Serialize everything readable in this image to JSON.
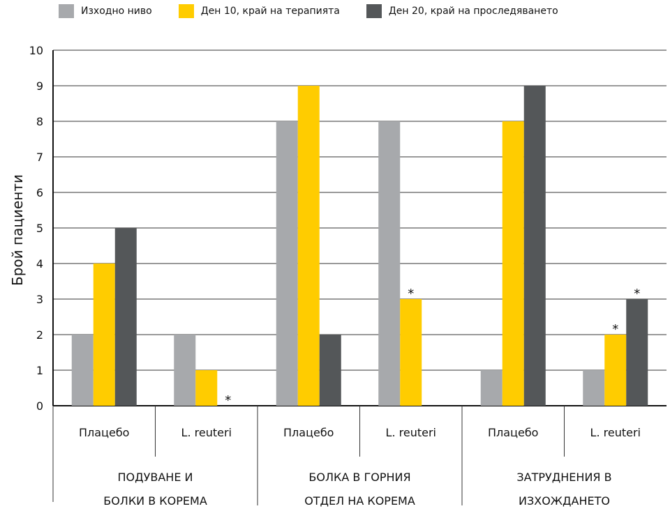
{
  "chart_data": {
    "type": "bar",
    "ylabel": "Брой пациенти",
    "ylim": [
      0,
      10
    ],
    "yticks": [
      0,
      1,
      2,
      3,
      4,
      5,
      6,
      7,
      8,
      9,
      10
    ],
    "grid": true,
    "legend_placement": "top",
    "series": [
      {
        "name": "Изходно ниво",
        "color": "#a7a9ac",
        "values": [
          2,
          2,
          8,
          8,
          1,
          1
        ]
      },
      {
        "name": "Ден 10, край на терапията",
        "color": "#ffcc00",
        "values": [
          4,
          1,
          9,
          3,
          8,
          2
        ]
      },
      {
        "name": "Ден 20, край на проследяването",
        "color": "#545759",
        "values": [
          5,
          0,
          2,
          0,
          9,
          3
        ]
      }
    ],
    "categories": [
      "Плацебо",
      "L. reuteri",
      "Плацебо",
      "L. reuteri",
      "Плацебо",
      "L. reuteri"
    ],
    "groups": [
      {
        "lines": [
          "ПОДУВАНЕ И",
          "БОЛКИ В КОРЕМА"
        ]
      },
      {
        "lines": [
          "БОЛКА В ГОРНИЯ",
          "ОТДЕЛ НА КОРЕМА"
        ]
      },
      {
        "lines": [
          "ЗАТРУДНЕНИЯ В",
          "ИЗХОЖДАНЕТО"
        ]
      }
    ],
    "annotations": [
      {
        "text": "*",
        "category_index": 1,
        "series_index": 2
      },
      {
        "text": "*",
        "category_index": 3,
        "series_index": 1
      },
      {
        "text": "*",
        "category_index": 5,
        "series_index": 1
      },
      {
        "text": "*",
        "category_index": 5,
        "series_index": 2
      }
    ]
  }
}
